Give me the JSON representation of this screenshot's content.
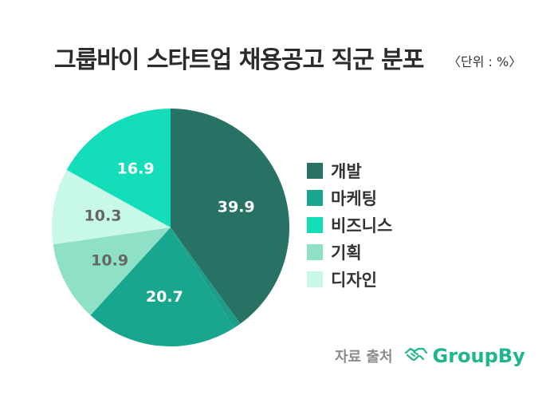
{
  "header": {
    "title": "그룹바이 스타트업 채용공고 직군 분포",
    "unit": "〈단위 : %〉"
  },
  "chart_data": {
    "type": "pie",
    "title": "그룹바이 스타트업 채용공고 직군 분포",
    "unit": "%",
    "slices": [
      {
        "value": 39.9,
        "color": "#277265",
        "label": "39.9"
      },
      {
        "value": 1.0,
        "color": "#1e9e88",
        "label": ""
      },
      {
        "value": 20.7,
        "color": "#19a68e",
        "label": "20.7"
      },
      {
        "value": 10.9,
        "color": "#8ee0c7",
        "label": "10.9"
      },
      {
        "value": 10.3,
        "color": "#c8f8e8",
        "label": "10.3"
      },
      {
        "value": 16.9,
        "color": "#14ddb9",
        "label": "16.9"
      }
    ],
    "legend": [
      {
        "name": "개발",
        "color": "#277265"
      },
      {
        "name": "마케팅",
        "color": "#19a68e"
      },
      {
        "name": "비즈니스",
        "color": "#14ddb9"
      },
      {
        "name": "기획",
        "color": "#8ee0c7"
      },
      {
        "name": "디자인",
        "color": "#c8f8e8"
      }
    ],
    "legend_position": "right"
  },
  "footer": {
    "source_label": "자료 출처",
    "brand": "GroupBy",
    "brand_color": "#1fb58f",
    "brand_icon": "handshake-icon"
  }
}
